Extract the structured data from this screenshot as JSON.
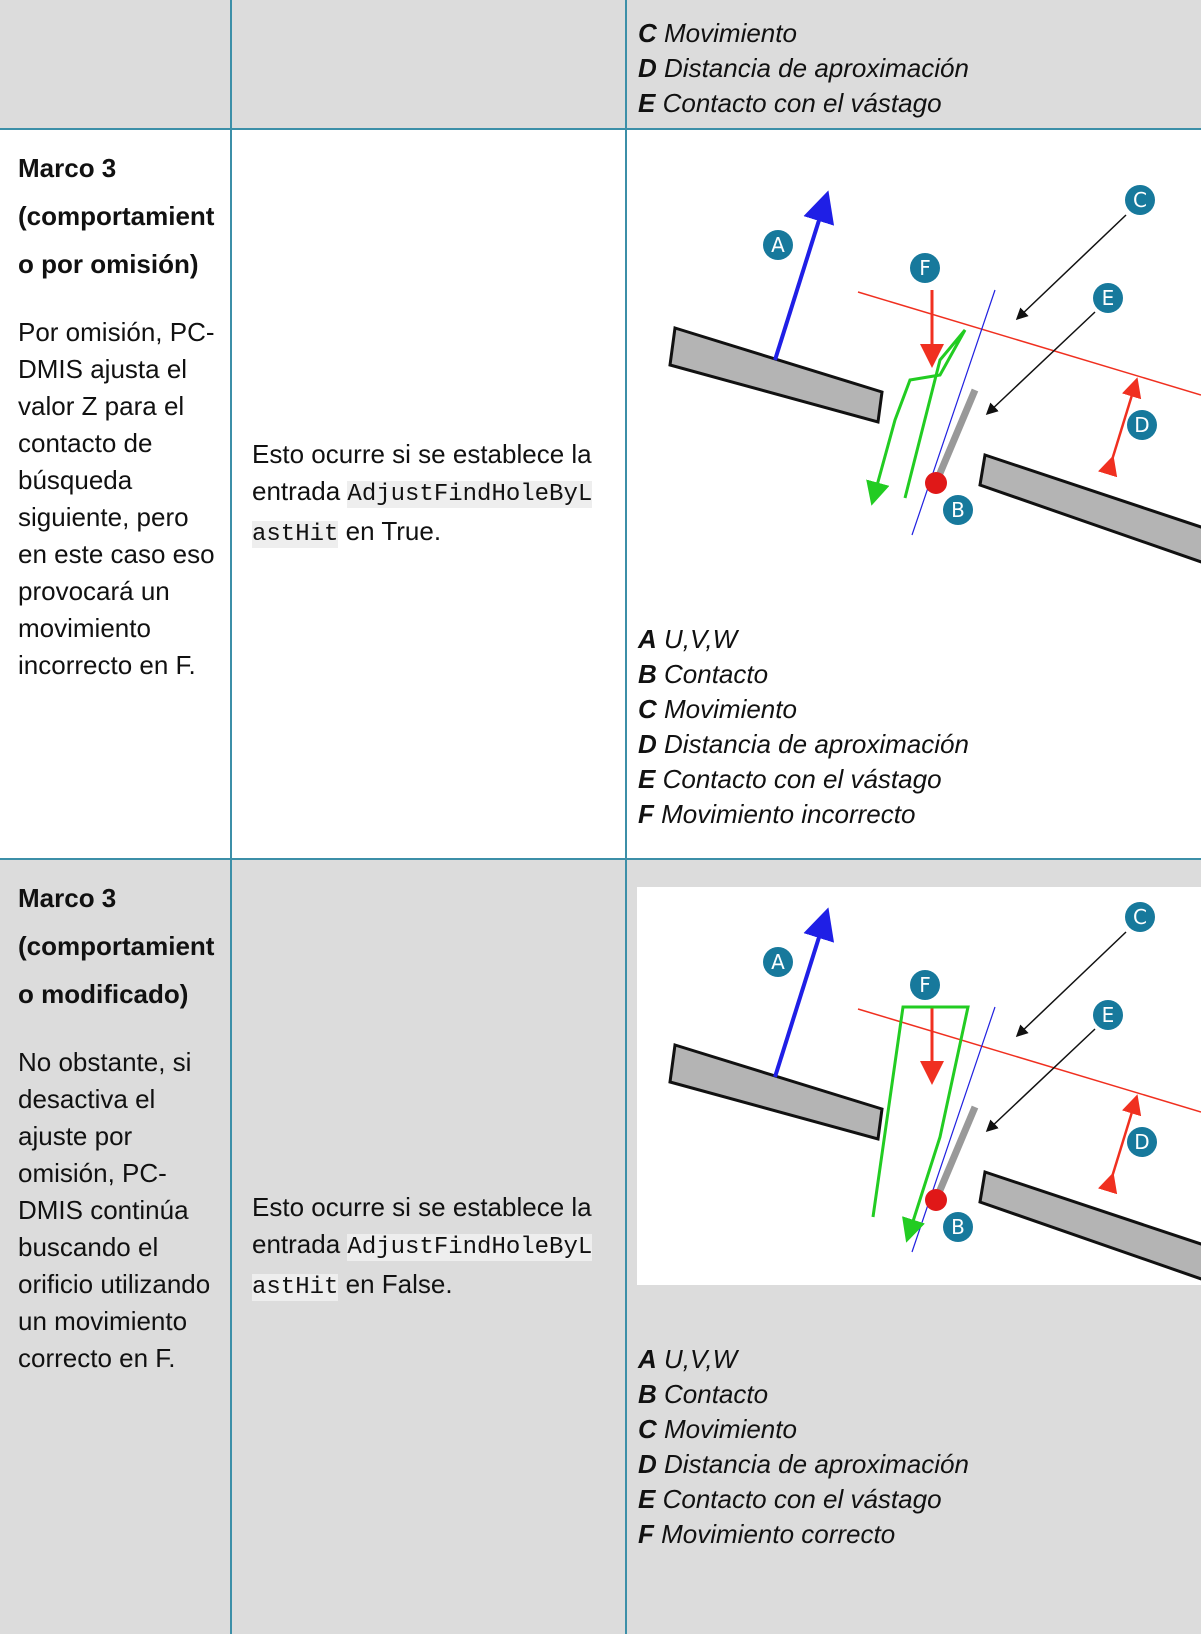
{
  "table": {
    "rows": [
      {
        "legend": [
          {
            "key": "C",
            "text": "Movimiento"
          },
          {
            "key": "D",
            "text": "Distancia de aproximación"
          },
          {
            "key": "E",
            "text": "Contacto con el vástago"
          }
        ]
      },
      {
        "heading": "Marco 3 (comportamiento por omisión)",
        "description": "Por omisión, PC-DMIS ajusta el valor Z para el contacto de búsqueda siguiente, pero en este caso eso provocará un movimiento incorrecto en F.",
        "condition": {
          "before": "Esto ocurre si se establece la entrada",
          "code": "AdjustFindHoleByLastHit",
          "after": "en True."
        },
        "diagram_labels": [
          "A",
          "B",
          "C",
          "D",
          "E",
          "F"
        ],
        "legend": [
          {
            "key": "A",
            "text": "U,V,W"
          },
          {
            "key": "B",
            "text": "Contacto"
          },
          {
            "key": "C",
            "text": "Movimiento"
          },
          {
            "key": "D",
            "text": "Distancia de aproximación"
          },
          {
            "key": "E",
            "text": "Contacto con el vástago"
          },
          {
            "key": "F",
            "text": "Movimiento incorrecto"
          }
        ]
      },
      {
        "heading": "Marco 3 (comportamiento modificado)",
        "description": "No obstante, si desactiva el ajuste por omisión, PC-DMIS continúa buscando el orificio utilizando un movimiento correcto en F.",
        "condition": {
          "before": "Esto ocurre si se establece la entrada",
          "code": "AdjustFindHoleByLastHit",
          "after": "en False."
        },
        "diagram_labels": [
          "A",
          "B",
          "C",
          "D",
          "E",
          "F"
        ],
        "legend": [
          {
            "key": "A",
            "text": "U,V,W"
          },
          {
            "key": "B",
            "text": "Contacto"
          },
          {
            "key": "C",
            "text": "Movimiento"
          },
          {
            "key": "D",
            "text": "Distancia de aproximación"
          },
          {
            "key": "E",
            "text": "Contacto con el vástago"
          },
          {
            "key": "F",
            "text": "Movimiento correcto"
          }
        ]
      }
    ]
  }
}
